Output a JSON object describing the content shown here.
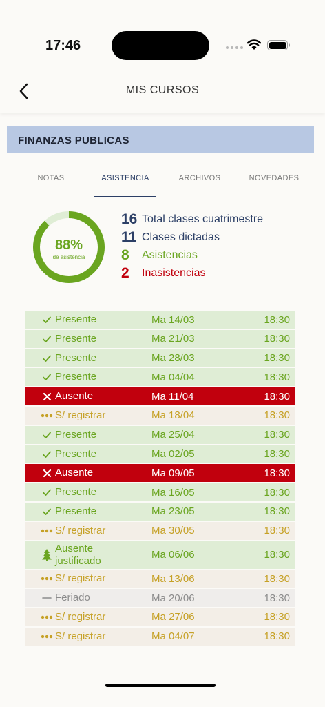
{
  "status_bar": {
    "time": "17:46"
  },
  "header": {
    "title": "MIS CURSOS"
  },
  "course": {
    "name": "FINANZAS PUBLICAS"
  },
  "tabs": [
    {
      "label": "NOTAS",
      "active": false
    },
    {
      "label": "ASISTENCIA",
      "active": true
    },
    {
      "label": "ARCHIVOS",
      "active": false
    },
    {
      "label": "NOVEDADES",
      "active": false
    }
  ],
  "summary": {
    "percent_label": "88%",
    "percent_value": 88,
    "percent_sub": "de asistencia",
    "stats": [
      {
        "num": "16",
        "label": "Total clases cuatrimestre",
        "tone": "blue"
      },
      {
        "num": "11",
        "label": "Clases dictadas",
        "tone": "blue"
      },
      {
        "num": "8",
        "label": "Asistencias",
        "tone": "green"
      },
      {
        "num": "2",
        "label": "Inasistencias",
        "tone": "red"
      }
    ]
  },
  "colors": {
    "green": "#6aa520",
    "red": "#c1000d",
    "blue": "#2c3f66",
    "gold": "#c6a126",
    "grey": "#8c8c8c"
  },
  "attendance": [
    {
      "status": "Presente",
      "type": "presente",
      "icon": "check-icon",
      "date": "Ma 14/03",
      "time": "18:30"
    },
    {
      "status": "Presente",
      "type": "presente",
      "icon": "check-icon",
      "date": "Ma 21/03",
      "time": "18:30"
    },
    {
      "status": "Presente",
      "type": "presente",
      "icon": "check-icon",
      "date": "Ma 28/03",
      "time": "18:30"
    },
    {
      "status": "Presente",
      "type": "presente",
      "icon": "check-icon",
      "date": "Ma 04/04",
      "time": "18:30"
    },
    {
      "status": "Ausente",
      "type": "ausente",
      "icon": "x-icon",
      "date": "Ma 11/04",
      "time": "18:30"
    },
    {
      "status": "S/ registrar",
      "type": "sreg",
      "icon": "dots-icon",
      "date": "Ma 18/04",
      "time": "18:30"
    },
    {
      "status": "Presente",
      "type": "presente",
      "icon": "check-icon",
      "date": "Ma 25/04",
      "time": "18:30"
    },
    {
      "status": "Presente",
      "type": "presente",
      "icon": "check-icon",
      "date": "Ma 02/05",
      "time": "18:30"
    },
    {
      "status": "Ausente",
      "type": "ausente",
      "icon": "x-icon",
      "date": "Ma 09/05",
      "time": "18:30"
    },
    {
      "status": "Presente",
      "type": "presente",
      "icon": "check-icon",
      "date": "Ma 16/05",
      "time": "18:30"
    },
    {
      "status": "Presente",
      "type": "presente",
      "icon": "check-icon",
      "date": "Ma 23/05",
      "time": "18:30"
    },
    {
      "status": "S/ registrar",
      "type": "sreg",
      "icon": "dots-icon",
      "date": "Ma 30/05",
      "time": "18:30"
    },
    {
      "status": "Ausente justificado",
      "status_line1": "Ausente",
      "status_line2": "justificado",
      "type": "justificado",
      "icon": "tree-icon",
      "date": "Ma 06/06",
      "time": "18:30"
    },
    {
      "status": "S/ registrar",
      "type": "sreg",
      "icon": "dots-icon",
      "date": "Ma 13/06",
      "time": "18:30"
    },
    {
      "status": "Feriado",
      "type": "feriado",
      "icon": "dash-icon",
      "date": "Ma 20/06",
      "time": "18:30"
    },
    {
      "status": "S/ registrar",
      "type": "sreg",
      "icon": "dots-icon",
      "date": "Ma 27/06",
      "time": "18:30"
    },
    {
      "status": "S/ registrar",
      "type": "sreg",
      "icon": "dots-icon",
      "date": "Ma 04/07",
      "time": "18:30"
    }
  ]
}
